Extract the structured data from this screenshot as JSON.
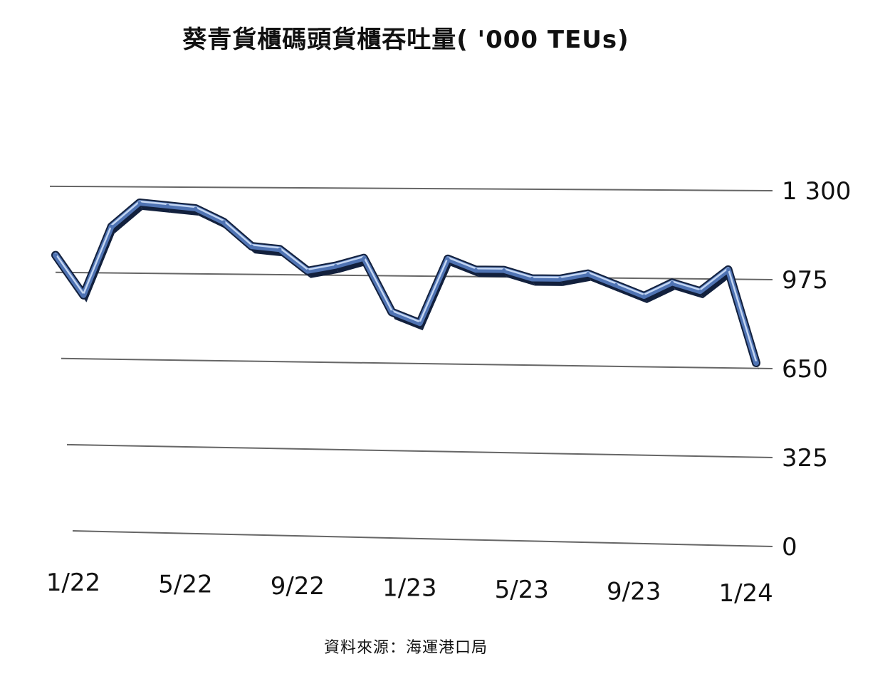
{
  "chart_data": {
    "type": "line",
    "title": "葵青貨櫃碼頭貨櫃吞吐量( '000 TEUs)",
    "x": [
      "1/22",
      "2/22",
      "3/22",
      "4/22",
      "5/22",
      "6/22",
      "7/22",
      "8/22",
      "9/22",
      "10/22",
      "11/22",
      "12/22",
      "1/23",
      "2/23",
      "3/23",
      "4/23",
      "5/23",
      "6/23",
      "7/23",
      "8/23",
      "9/23",
      "10/23",
      "11/23",
      "12/23",
      "1/24",
      "2/24"
    ],
    "x_tick_labels": [
      "1/22",
      "5/22",
      "9/22",
      "1/23",
      "5/23",
      "9/23",
      "1/24"
    ],
    "series": [
      {
        "values": [
          1040,
          890,
          1150,
          1240,
          1230,
          1220,
          1170,
          1080,
          1070,
          990,
          1010,
          1040,
          840,
          800,
          1040,
          1000,
          1000,
          970,
          970,
          990,
          950,
          910,
          960,
          930,
          1010,
          670
        ]
      }
    ],
    "y_ticks": [
      0,
      325,
      650,
      975,
      1300
    ],
    "y_tick_labels": [
      "0",
      "325",
      "650",
      "975",
      "1 300"
    ],
    "ylim": [
      0,
      1300
    ],
    "xlabel": "",
    "ylabel": "",
    "grid": true,
    "style": "3d-ribbon",
    "colors": {
      "ribbon_face": "#4f73b3",
      "ribbon_highlight": "#c4d6f2",
      "ribbon_dark": "#12203d",
      "gridline": "#666666"
    }
  },
  "source_note": "資料來源：海運港口局"
}
